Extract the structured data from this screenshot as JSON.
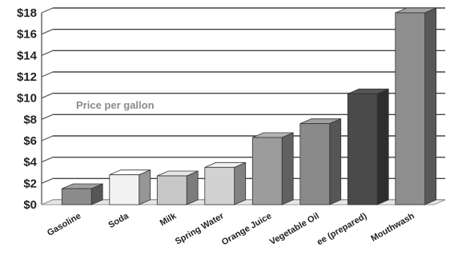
{
  "chart_data": {
    "type": "bar",
    "title": "",
    "xlabel": "",
    "ylabel": "",
    "annotation": "Price per gallon",
    "categories": [
      "Gasoline",
      "Soda",
      "Milk",
      "Spring Water",
      "Orange Juice",
      "Vegetable Oil",
      "ee (prepared)",
      "Mouthwash"
    ],
    "values": [
      1.5,
      2.8,
      2.7,
      3.5,
      6.3,
      7.6,
      10.4,
      18.0
    ],
    "bar_colors": [
      "#8c8c8c",
      "#f2f2f2",
      "#c8c8c8",
      "#d2d2d2",
      "#9c9c9c",
      "#8a8a8a",
      "#4a4a4a",
      "#8e8e8e"
    ],
    "ylim": [
      0,
      18
    ],
    "yticks": [
      "$0",
      "$2",
      "$4",
      "$6",
      "$8",
      "$10",
      "$12",
      "$14",
      "$16",
      "$18"
    ],
    "style": "3d-bar",
    "grid": true
  }
}
